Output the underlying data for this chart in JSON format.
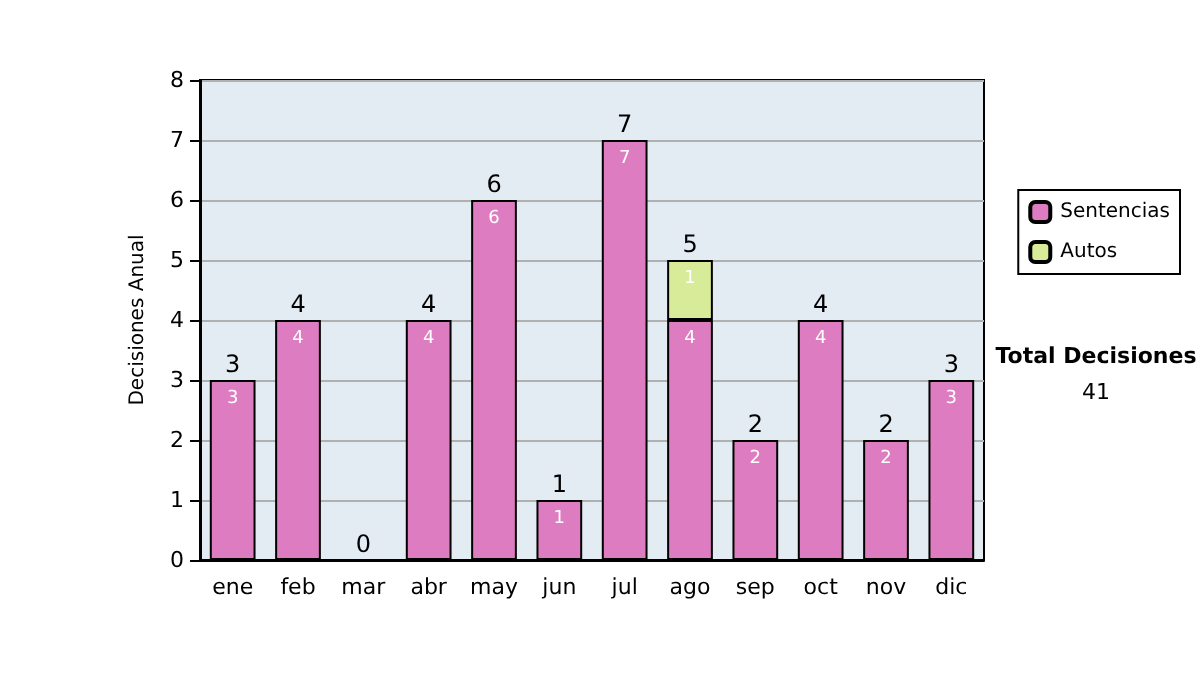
{
  "chart_data": {
    "type": "bar",
    "stacked": true,
    "ylabel": "Decisiones Anual",
    "categories": [
      "ene",
      "feb",
      "mar",
      "abr",
      "may",
      "jun",
      "jul",
      "ago",
      "sep",
      "oct",
      "nov",
      "dic"
    ],
    "series": [
      {
        "name": "Sentencias",
        "color": "#dd7cc0",
        "values": [
          3,
          4,
          0,
          4,
          6,
          1,
          7,
          4,
          2,
          4,
          2,
          3
        ],
        "value_labels": [
          "3",
          "4",
          null,
          "4",
          "6",
          "1",
          "7",
          "4",
          "2",
          "4",
          "2",
          "3"
        ]
      },
      {
        "name": "Autos",
        "color": "#d8eb99",
        "values": [
          0,
          0,
          0,
          0,
          0,
          0,
          0,
          1,
          0,
          0,
          0,
          0
        ],
        "value_labels": [
          null,
          null,
          null,
          null,
          null,
          null,
          null,
          "1",
          null,
          null,
          null,
          null
        ]
      }
    ],
    "totals": [
      "3",
      "4",
      "0",
      "4",
      "6",
      "1",
      "7",
      "5",
      "2",
      "4",
      "2",
      "3"
    ],
    "ylim": [
      0,
      8
    ],
    "yticks": [
      0,
      1,
      2,
      3,
      4,
      5,
      6,
      7,
      8
    ],
    "grid": "y",
    "legend": "right",
    "annotations": [
      "Total Decisiones",
      "41"
    ]
  }
}
